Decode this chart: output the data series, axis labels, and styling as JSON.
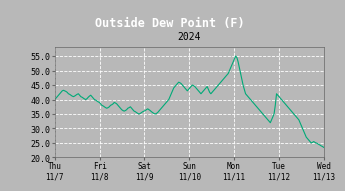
{
  "title": "Outside Dew Point (F)",
  "subtitle": "2024",
  "ylim": [
    20.0,
    58.0
  ],
  "yticks": [
    20.0,
    25.0,
    30.0,
    35.0,
    40.0,
    45.0,
    50.0,
    55.0
  ],
  "xtick_labels": [
    "Thu\n11/7",
    "Fri\n11/8",
    "Sat\n11/9",
    "Sun\n11/10",
    "Mon\n11/11",
    "Tue\n11/12",
    "Wed\n11/13"
  ],
  "line_color": "#00aa77",
  "bg_color": "#b8b8b8",
  "plot_bg_color": "#b8b8b8",
  "title_bg_color": "#000000",
  "title_text_color": "#ffffff",
  "grid_color": "#ffffff",
  "tick_color": "#000000",
  "data": [
    40.0,
    40.5,
    41.0,
    41.5,
    42.0,
    42.5,
    43.0,
    43.2,
    43.0,
    42.8,
    42.5,
    42.0,
    41.8,
    41.5,
    41.2,
    41.0,
    41.2,
    41.5,
    41.8,
    42.0,
    41.5,
    41.0,
    40.8,
    40.5,
    40.2,
    40.0,
    40.3,
    40.8,
    41.2,
    41.5,
    41.0,
    40.5,
    40.0,
    39.8,
    39.5,
    39.2,
    39.0,
    38.5,
    38.0,
    37.8,
    37.5,
    37.2,
    37.0,
    37.2,
    37.5,
    38.0,
    38.2,
    38.5,
    39.0,
    38.8,
    38.5,
    38.0,
    37.5,
    37.0,
    36.5,
    36.2,
    36.0,
    36.2,
    36.5,
    37.0,
    37.2,
    37.5,
    37.0,
    36.5,
    36.0,
    35.8,
    35.5,
    35.2,
    35.0,
    35.2,
    35.5,
    35.8,
    36.0,
    36.2,
    36.5,
    36.8,
    36.5,
    36.2,
    35.8,
    35.5,
    35.2,
    35.0,
    35.2,
    35.5,
    36.0,
    36.5,
    37.0,
    37.5,
    38.0,
    38.5,
    39.0,
    39.5,
    40.0,
    41.0,
    42.0,
    43.0,
    44.0,
    44.5,
    45.0,
    45.5,
    46.0,
    45.8,
    45.5,
    45.0,
    44.5,
    44.0,
    43.5,
    43.0,
    43.5,
    44.0,
    44.5,
    45.0,
    44.8,
    44.5,
    44.0,
    43.5,
    43.0,
    42.5,
    42.0,
    42.5,
    43.0,
    43.5,
    44.0,
    44.5,
    43.5,
    42.5,
    42.0,
    42.5,
    43.0,
    43.5,
    44.0,
    44.5,
    45.0,
    45.5,
    46.0,
    46.5,
    47.0,
    47.5,
    48.0,
    48.5,
    49.0,
    50.0,
    51.0,
    52.0,
    53.0,
    54.0,
    55.0,
    54.5,
    53.0,
    51.0,
    49.0,
    47.0,
    45.0,
    43.5,
    42.0,
    41.5,
    41.0,
    40.5,
    40.0,
    39.5,
    39.0,
    38.5,
    38.0,
    37.5,
    37.0,
    36.5,
    36.0,
    35.5,
    35.0,
    34.5,
    34.0,
    33.5,
    33.0,
    32.5,
    32.0,
    33.0,
    34.0,
    35.0,
    38.0,
    42.0,
    41.5,
    41.0,
    40.5,
    40.0,
    39.5,
    39.0,
    38.5,
    38.0,
    37.5,
    37.0,
    36.5,
    36.0,
    35.5,
    35.0,
    34.5,
    34.0,
    33.5,
    33.0,
    32.0,
    31.0,
    30.0,
    29.0,
    28.0,
    27.0,
    26.5,
    26.0,
    25.5,
    25.0,
    25.2,
    25.5,
    25.2,
    25.0,
    24.8,
    24.5,
    24.3,
    24.0,
    23.8,
    23.5
  ]
}
